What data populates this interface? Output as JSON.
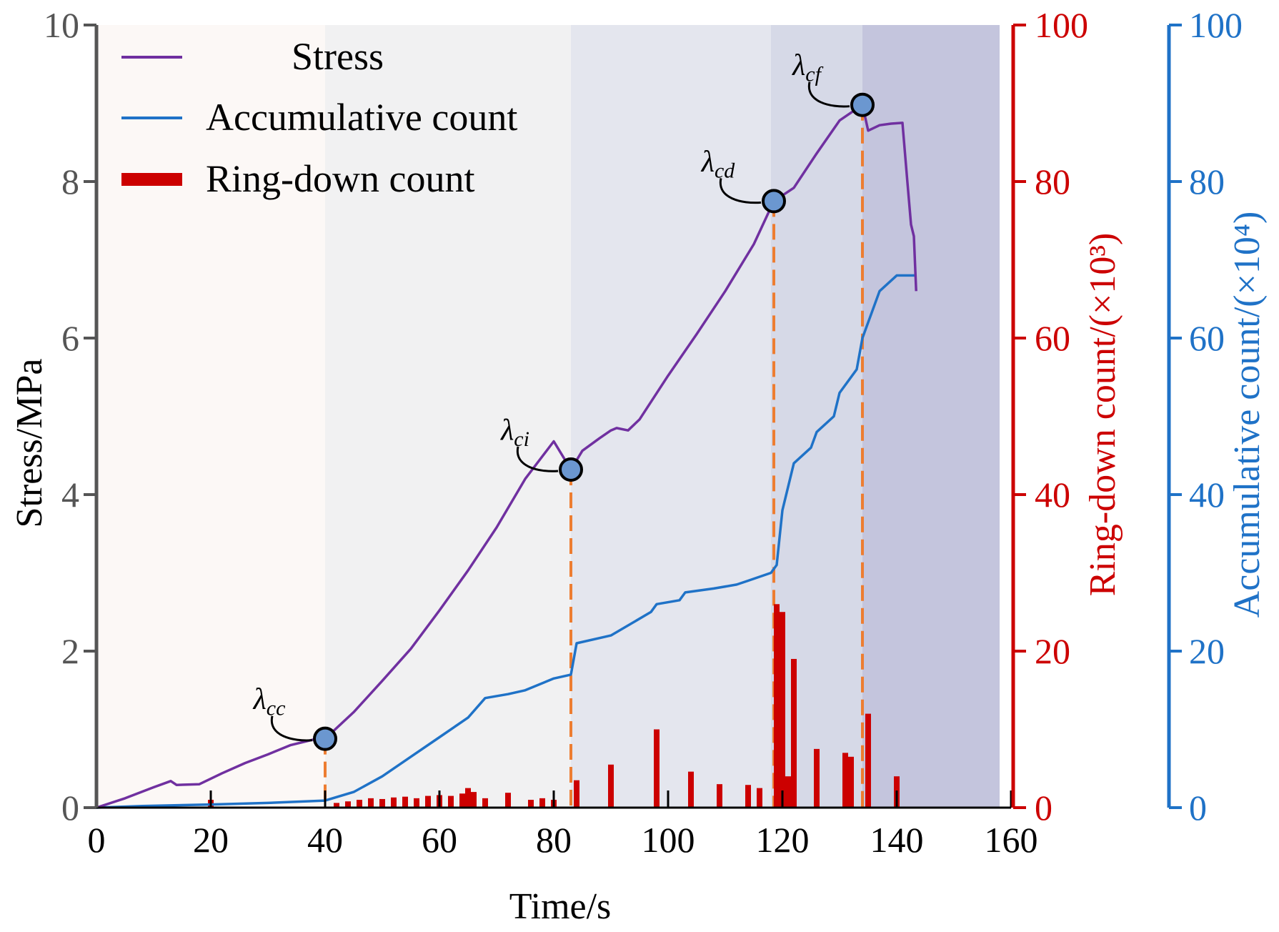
{
  "chart_data": {
    "type": "line",
    "x_axis": {
      "label": "Time/s",
      "range": [
        0,
        160
      ],
      "ticks": [
        0,
        20,
        40,
        60,
        80,
        100,
        120,
        140,
        160
      ],
      "tick_labels": [
        "0",
        "20",
        "40",
        "60",
        "80",
        "100",
        "120",
        "140",
        "160"
      ]
    },
    "y_axis_left": {
      "label": "Stress/MPa",
      "range": [
        0,
        10
      ],
      "ticks": [
        0,
        2,
        4,
        6,
        8,
        10
      ],
      "tick_labels": [
        "0",
        "2",
        "4",
        "6",
        "8",
        "10"
      ]
    },
    "y_axis_right1": {
      "label": "Ring-down count/(×10³)",
      "range": [
        0,
        100
      ],
      "ticks": [
        0,
        20,
        40,
        60,
        80,
        100
      ],
      "tick_labels": [
        "0",
        "20",
        "40",
        "60",
        "80",
        "100"
      ]
    },
    "y_axis_right2": {
      "label": "Accumulative count/(×10⁴)",
      "range": [
        0,
        100
      ],
      "ticks": [
        0,
        20,
        40,
        60,
        80,
        100
      ],
      "tick_labels": [
        "0",
        "20",
        "40",
        "60",
        "80",
        "100"
      ]
    },
    "legend": {
      "position": "top-left",
      "entries": [
        {
          "label": "Stress",
          "color": "#7030a0",
          "style": "line"
        },
        {
          "label": "Accumulative count",
          "color": "#1f72c7",
          "style": "line"
        },
        {
          "label": "Ring-down count",
          "color": "#cc0000",
          "style": "bar"
        }
      ]
    },
    "stage_regions": [
      {
        "x_start": 0,
        "x_end": 40,
        "color": "#fcf8f6"
      },
      {
        "x_start": 40,
        "x_end": 83,
        "color": "#f1f1f2"
      },
      {
        "x_start": 83,
        "x_end": 118,
        "color": "#e4e6ee"
      },
      {
        "x_start": 118,
        "x_end": 134,
        "color": "#d6d9e7"
      },
      {
        "x_start": 134,
        "x_end": 158,
        "color": "#c4c5dd"
      }
    ],
    "characteristic_points": [
      {
        "label": "λcc",
        "main": "λ",
        "sub": "cc",
        "x": 40,
        "y": 0.88
      },
      {
        "label": "λci",
        "main": "λ",
        "sub": "ci",
        "x": 83,
        "y": 4.32
      },
      {
        "label": "λcd",
        "main": "λ",
        "sub": "cd",
        "x": 118.5,
        "y": 7.75
      },
      {
        "label": "λcf",
        "main": "λ",
        "sub": "cf",
        "x": 134,
        "y": 8.98
      }
    ],
    "series": [
      {
        "name": "Stress",
        "axis": "left",
        "color": "#7030a0",
        "x": [
          0,
          5,
          10,
          13,
          14,
          18,
          22,
          26,
          30,
          34,
          38,
          40,
          45,
          50,
          55,
          60,
          65,
          70,
          75,
          80,
          83,
          85,
          88,
          90,
          91,
          93,
          95,
          100,
          105,
          110,
          115,
          118.5,
          122,
          126,
          130,
          133,
          134,
          135,
          137,
          139,
          141,
          141.8,
          142.5,
          143,
          143.4
        ],
        "y": [
          0,
          0.12,
          0.26,
          0.34,
          0.29,
          0.3,
          0.44,
          0.57,
          0.68,
          0.8,
          0.87,
          0.88,
          1.22,
          1.62,
          2.03,
          2.52,
          3.03,
          3.58,
          4.2,
          4.68,
          4.32,
          4.56,
          4.72,
          4.82,
          4.85,
          4.82,
          4.96,
          5.52,
          6.05,
          6.6,
          7.2,
          7.75,
          7.92,
          8.36,
          8.78,
          8.93,
          8.98,
          8.65,
          8.72,
          8.74,
          8.75,
          8.05,
          7.45,
          7.3,
          6.6
        ]
      },
      {
        "name": "Accumulative count",
        "axis": "right2",
        "color": "#1f72c7",
        "x": [
          0,
          8,
          20,
          30,
          40,
          45,
          50,
          55,
          60,
          65,
          68,
          72,
          75,
          80,
          83,
          84,
          90,
          97,
          98,
          102,
          103,
          108,
          112,
          114,
          118,
          119,
          120,
          122,
          125,
          126,
          129,
          130,
          133,
          134,
          136,
          137,
          140,
          143.4
        ],
        "y": [
          0,
          0.2,
          0.4,
          0.6,
          0.9,
          2,
          4,
          6.5,
          9,
          11.5,
          14,
          14.5,
          15,
          16.5,
          17,
          21,
          22,
          25,
          26,
          26.5,
          27.5,
          28,
          28.5,
          29,
          30,
          31,
          38,
          44,
          46,
          48,
          50,
          53,
          56,
          60,
          64,
          66,
          68,
          68
        ]
      },
      {
        "name": "Ring-down count",
        "axis": "right1",
        "color": "#cc0000",
        "type": "bar",
        "x": [
          20,
          42,
          44,
          46,
          48,
          50,
          52,
          54,
          56,
          58,
          60,
          62,
          64,
          65,
          66,
          68,
          72,
          76,
          78,
          80,
          84,
          90,
          98,
          104,
          109,
          114,
          116,
          119,
          120,
          121,
          122,
          126,
          131,
          132,
          135,
          140
        ],
        "values": [
          1,
          0.6,
          0.8,
          1,
          1.2,
          1.1,
          1.3,
          1.4,
          1.2,
          1.5,
          1.6,
          1.5,
          1.8,
          2.5,
          2.0,
          1.2,
          1.9,
          1.0,
          1.2,
          1.0,
          3.5,
          5.5,
          10,
          4.6,
          3,
          2.9,
          2.5,
          26,
          25,
          4,
          19,
          7.5,
          7,
          6.5,
          12,
          4
        ]
      }
    ]
  }
}
